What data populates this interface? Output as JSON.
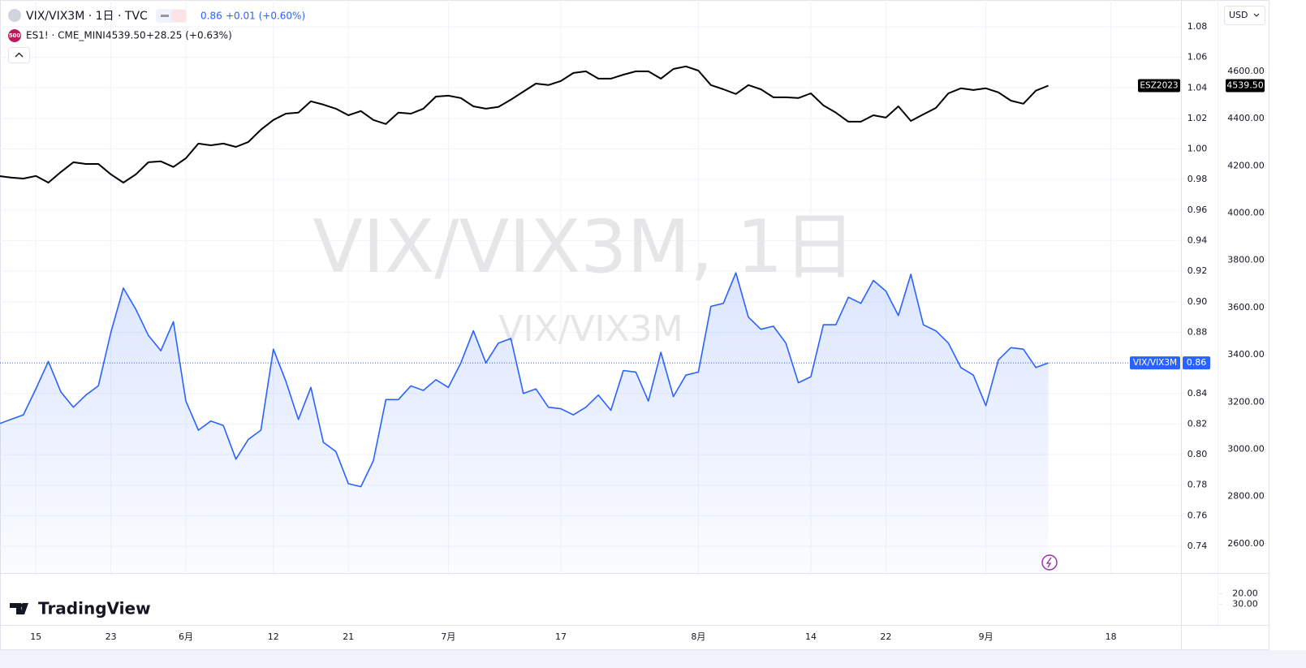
{
  "header": {
    "symbol": "VIX/VIX3M · 1日 · TVC",
    "price": "0.86",
    "change": "+0.01 (+0.60%)",
    "compare_badge": "500",
    "compare_symbol": "ES1! · CME_MINI",
    "compare_price": "4539.50",
    "compare_change": "+28.25 (+0.63%)"
  },
  "currency": "USD",
  "watermark": {
    "title": "VIX/VIX3M, 1日",
    "subtitle": "VIX/VIX3M"
  },
  "logo": "TradingView",
  "chart_data": {
    "type": "line",
    "categories": [
      null,
      null,
      null,
      "15",
      null,
      null,
      null,
      null,
      null,
      "23",
      null,
      null,
      null,
      null,
      null,
      "6月",
      null,
      null,
      null,
      null,
      null,
      null,
      "12",
      null,
      null,
      null,
      null,
      null,
      "21",
      null,
      null,
      null,
      null,
      null,
      null,
      null,
      "7月",
      null,
      null,
      null,
      null,
      null,
      null,
      null,
      null,
      "17",
      null,
      null,
      null,
      null,
      null,
      null,
      null,
      null,
      null,
      null,
      "8月",
      null,
      null,
      null,
      null,
      null,
      null,
      null,
      null,
      "14",
      null,
      null,
      null,
      null,
      null,
      "22",
      null,
      null,
      null,
      null,
      null,
      null,
      null,
      "9月",
      null,
      null,
      null,
      null,
      null,
      null,
      null,
      null,
      null,
      "18"
    ],
    "series": [
      {
        "name": "VIX/VIX3M",
        "color": "#2962ff",
        "area": true,
        "values": [
          0.82,
          0.823,
          0.826,
          0.843,
          0.861,
          0.841,
          0.831,
          0.839,
          0.845,
          0.88,
          0.909,
          0.895,
          0.878,
          0.868,
          0.887,
          0.835,
          0.816,
          0.822,
          0.819,
          0.797,
          0.81,
          0.816,
          0.869,
          0.848,
          0.823,
          0.844,
          0.808,
          0.802,
          0.781,
          0.779,
          0.796,
          0.836,
          0.836,
          0.845,
          0.842,
          0.849,
          0.844,
          0.86,
          0.881,
          0.86,
          0.873,
          0.876,
          0.84,
          0.843,
          0.831,
          0.83,
          0.826,
          0.831,
          0.839,
          0.829,
          0.855,
          0.854,
          0.835,
          0.867,
          0.838,
          0.852,
          0.854,
          0.897,
          0.899,
          0.919,
          0.89,
          0.882,
          0.884,
          0.873,
          0.847,
          0.851,
          0.885,
          0.885,
          0.903,
          0.899,
          0.914,
          0.907,
          0.891,
          0.918,
          0.885,
          0.881,
          0.873,
          0.857,
          0.852,
          0.832,
          0.862,
          0.87,
          0.869,
          0.857,
          0.86,
          null,
          null,
          null,
          null,
          null
        ]
      },
      {
        "name": "ESZ2023",
        "color": "#000000",
        "axis": "y2",
        "values": [
          4157,
          4150,
          4146,
          4157,
          4129,
          4174,
          4215,
          4208,
          4208,
          4164,
          4129,
          4164,
          4215,
          4219,
          4195,
          4232,
          4294,
          4287,
          4294,
          4280,
          4301,
          4353,
          4394,
          4421,
          4425,
          4473,
          4459,
          4442,
          4414,
          4432,
          4394,
          4377,
          4425,
          4421,
          4442,
          4493,
          4497,
          4487,
          4452,
          4442,
          4449,
          4480,
          4514,
          4548,
          4542,
          4559,
          4593,
          4600,
          4569,
          4569,
          4586,
          4600,
          4600,
          4569,
          4610,
          4621,
          4603,
          4542,
          4524,
          4504,
          4542,
          4524,
          4490,
          4490,
          4487,
          4507,
          4456,
          4425,
          4387,
          4387,
          4414,
          4404,
          4452,
          4390,
          4418,
          4445,
          4507,
          4528,
          4521,
          4528,
          4511,
          4476,
          4463,
          4518,
          4539.5,
          null,
          null,
          null,
          null,
          null
        ]
      }
    ],
    "ylim": [
      0.7225,
      1.0975
    ],
    "yticks": [
      1.08,
      1.06,
      1.04,
      1.02,
      {
        "value": 1.0,
        "label": "1.00"
      },
      0.98,
      0.96,
      0.94,
      0.92,
      {
        "value": 0.9,
        "label": "0.90"
      },
      0.88,
      0.84,
      0.82,
      {
        "value": 0.8,
        "label": "0.80"
      },
      0.78,
      0.76,
      0.74
    ],
    "y2lim": [
      2476,
      4902
    ],
    "y2ticks": [
      {
        "value": 4600,
        "label": "4600.00"
      },
      {
        "value": 4400,
        "label": "4400.00"
      },
      {
        "value": 4200,
        "label": "4200.00"
      },
      {
        "value": 4000,
        "label": "4000.00"
      },
      {
        "value": 3800,
        "label": "3800.00"
      },
      {
        "value": 3600,
        "label": "3600.00"
      },
      {
        "value": 3400,
        "label": "3400.00"
      },
      {
        "value": 3200,
        "label": "3200.00"
      },
      {
        "value": 3000,
        "label": "3000.00"
      },
      {
        "value": 2800,
        "label": "2800.00"
      },
      {
        "value": 2600,
        "label": "2600.00"
      }
    ],
    "pane2": {
      "ylim": [
        50,
        1
      ],
      "yticks": [
        {
          "value": 20,
          "label": "20.00"
        },
        {
          "value": 30,
          "label": "30.00"
        }
      ]
    },
    "grid": true
  }
}
